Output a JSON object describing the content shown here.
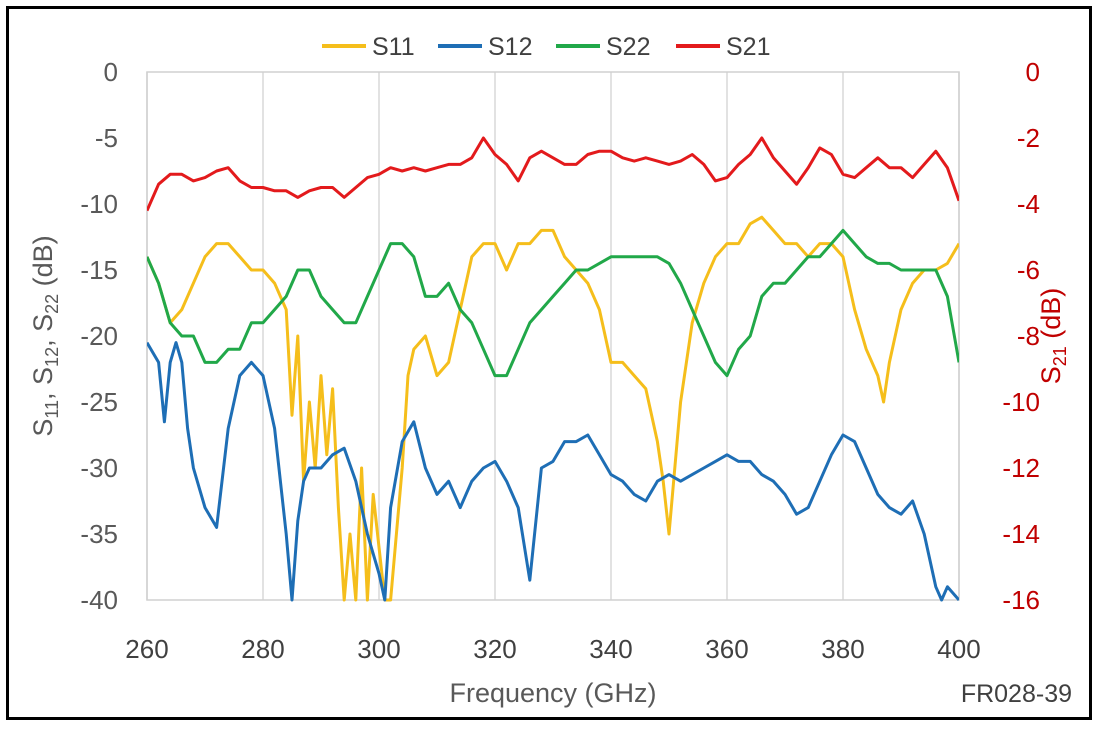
{
  "chart_data": {
    "type": "line",
    "xlabel": "Frequency (GHz)",
    "ylabel_left": {
      "main": "S",
      "parts": [
        [
          "11",
          ", S"
        ],
        [
          "12",
          ", S"
        ],
        [
          "22",
          " (dB)"
        ]
      ]
    },
    "ylabel_right": {
      "main": "S",
      "sub": "21",
      "suffix": " (dB)"
    },
    "xlim": [
      260,
      400
    ],
    "ylim_left": [
      -40,
      0
    ],
    "ylim_right": [
      -16,
      0
    ],
    "x_ticks": [
      "260",
      "280",
      "300",
      "320",
      "340",
      "360",
      "380",
      "400"
    ],
    "x_tick_values": [
      260,
      280,
      300,
      320,
      340,
      360,
      380,
      400
    ],
    "y_left_ticks": [
      "0",
      "-5",
      "-10",
      "-15",
      "-20",
      "-25",
      "-30",
      "-35",
      "-40"
    ],
    "y_left_tick_values": [
      0,
      -5,
      -10,
      -15,
      -20,
      -25,
      -30,
      -35,
      -40
    ],
    "y_right_ticks": [
      "0",
      "-2",
      "-4",
      "-6",
      "-8",
      "-10",
      "-12",
      "-14",
      "-16"
    ],
    "y_right_tick_values": [
      0,
      -2,
      -4,
      -6,
      -8,
      -10,
      -12,
      -14,
      -16
    ],
    "grid": "vertical",
    "legend_position": "top",
    "annotation": "FR028-39",
    "series": [
      {
        "name": "S11",
        "color": "#f5be1b",
        "axis": "left",
        "x": [
          260,
          262,
          264,
          266,
          268,
          270,
          272,
          274,
          276,
          278,
          280,
          282,
          284,
          285,
          286,
          287,
          288,
          289,
          290,
          291,
          292,
          293,
          294,
          295,
          296,
          297,
          298,
          299,
          300,
          301,
          302,
          303,
          304,
          305,
          306,
          308,
          310,
          312,
          314,
          316,
          318,
          320,
          322,
          324,
          326,
          328,
          330,
          332,
          334,
          336,
          338,
          340,
          342,
          344,
          346,
          348,
          349,
          350,
          351,
          352,
          354,
          356,
          358,
          360,
          362,
          364,
          366,
          368,
          370,
          372,
          374,
          376,
          378,
          380,
          382,
          384,
          386,
          387,
          388,
          390,
          392,
          394,
          396,
          398,
          400
        ],
        "y": [
          -14,
          -16,
          -19,
          -18,
          -16,
          -14,
          -13,
          -13,
          -14,
          -15,
          -15,
          -16,
          -18,
          -26,
          -20,
          -31,
          -25,
          -30,
          -23,
          -29,
          -24,
          -33,
          -40,
          -35,
          -40,
          -30,
          -40,
          -32,
          -36,
          -40,
          -40,
          -35,
          -30,
          -23,
          -21,
          -20,
          -23,
          -22,
          -18,
          -14,
          -13,
          -13,
          -15,
          -13,
          -13,
          -12,
          -12,
          -14,
          -15,
          -16,
          -18,
          -22,
          -22,
          -23,
          -24,
          -28,
          -31,
          -35,
          -30,
          -25,
          -19,
          -16,
          -14,
          -13,
          -13,
          -11.5,
          -11,
          -12,
          -13,
          -13,
          -14,
          -13,
          -13,
          -14,
          -18,
          -21,
          -23,
          -25,
          -22,
          -18,
          -16,
          -15,
          -15,
          -14.5,
          -13
        ]
      },
      {
        "name": "S12",
        "color": "#1e6eb5",
        "axis": "left",
        "x": [
          260,
          262,
          263,
          264,
          265,
          266,
          267,
          268,
          270,
          272,
          274,
          276,
          278,
          280,
          282,
          284,
          285,
          286,
          287,
          288,
          290,
          292,
          294,
          296,
          298,
          299,
          300,
          301,
          302,
          304,
          306,
          308,
          310,
          312,
          314,
          316,
          318,
          320,
          322,
          324,
          326,
          328,
          330,
          332,
          334,
          336,
          338,
          340,
          342,
          344,
          346,
          348,
          350,
          352,
          354,
          356,
          358,
          360,
          362,
          364,
          366,
          368,
          370,
          372,
          374,
          376,
          378,
          380,
          382,
          384,
          386,
          388,
          390,
          392,
          394,
          396,
          397,
          398,
          400
        ],
        "y": [
          -20.5,
          -22,
          -26.5,
          -22,
          -20.5,
          -22,
          -27,
          -30,
          -33,
          -34.5,
          -27,
          -23,
          -22,
          -23,
          -27,
          -35,
          -40,
          -34,
          -31,
          -30,
          -30,
          -29,
          -28.5,
          -31,
          -35,
          -36.5,
          -38,
          -40,
          -33,
          -28,
          -26.5,
          -30,
          -32,
          -31,
          -33,
          -31,
          -30,
          -29.5,
          -31,
          -33,
          -38.5,
          -30,
          -29.5,
          -28,
          -28,
          -27.5,
          -29,
          -30.5,
          -31,
          -32,
          -32.5,
          -31,
          -30.5,
          -31,
          -30.5,
          -30,
          -29.5,
          -29,
          -29.5,
          -29.5,
          -30.5,
          -31,
          -32,
          -33.5,
          -33,
          -31,
          -29,
          -27.5,
          -28,
          -30,
          -32,
          -33,
          -33.5,
          -32.5,
          -35,
          -39,
          -40,
          -39,
          -40
        ]
      },
      {
        "name": "S22",
        "color": "#21a849",
        "axis": "left",
        "x": [
          260,
          262,
          264,
          266,
          268,
          270,
          272,
          274,
          276,
          278,
          280,
          282,
          284,
          286,
          288,
          290,
          292,
          294,
          296,
          298,
          300,
          302,
          304,
          306,
          308,
          310,
          312,
          314,
          316,
          318,
          320,
          322,
          324,
          326,
          328,
          330,
          332,
          334,
          336,
          338,
          340,
          342,
          344,
          346,
          348,
          350,
          352,
          354,
          356,
          358,
          360,
          362,
          364,
          366,
          368,
          370,
          372,
          374,
          376,
          378,
          380,
          382,
          384,
          386,
          388,
          390,
          392,
          394,
          396,
          398,
          400
        ],
        "y": [
          -14,
          -16,
          -19,
          -20,
          -20,
          -22,
          -22,
          -21,
          -21,
          -19,
          -19,
          -18,
          -17,
          -15,
          -15,
          -17,
          -18,
          -19,
          -19,
          -17,
          -15,
          -13,
          -13,
          -14,
          -17,
          -17,
          -16,
          -18,
          -19,
          -21,
          -23,
          -23,
          -21,
          -19,
          -18,
          -17,
          -16,
          -15,
          -15,
          -14.5,
          -14,
          -14,
          -14,
          -14,
          -14,
          -14.5,
          -16,
          -18,
          -20,
          -22,
          -23,
          -21,
          -20,
          -17,
          -16,
          -16,
          -15,
          -14,
          -14,
          -13,
          -12,
          -13,
          -14,
          -14.5,
          -14.5,
          -15,
          -15,
          -15,
          -15,
          -17,
          -22
        ]
      },
      {
        "name": "S21",
        "color": "#e31a1c",
        "axis": "right",
        "x": [
          260,
          262,
          264,
          266,
          268,
          270,
          272,
          274,
          276,
          278,
          280,
          282,
          284,
          286,
          288,
          290,
          292,
          294,
          296,
          298,
          300,
          302,
          304,
          306,
          308,
          310,
          312,
          314,
          316,
          318,
          320,
          322,
          324,
          326,
          328,
          330,
          332,
          334,
          336,
          338,
          340,
          342,
          344,
          346,
          348,
          350,
          352,
          354,
          356,
          358,
          360,
          362,
          364,
          366,
          368,
          370,
          372,
          374,
          376,
          378,
          380,
          382,
          384,
          386,
          388,
          390,
          392,
          394,
          396,
          398,
          400
        ],
        "y": [
          -4.2,
          -3.4,
          -3.1,
          -3.1,
          -3.3,
          -3.2,
          -3,
          -2.9,
          -3.3,
          -3.5,
          -3.5,
          -3.6,
          -3.6,
          -3.8,
          -3.6,
          -3.5,
          -3.5,
          -3.8,
          -3.5,
          -3.2,
          -3.1,
          -2.9,
          -3,
          -2.9,
          -3,
          -2.9,
          -2.8,
          -2.8,
          -2.6,
          -2,
          -2.5,
          -2.8,
          -3.3,
          -2.6,
          -2.4,
          -2.6,
          -2.8,
          -2.8,
          -2.5,
          -2.4,
          -2.4,
          -2.6,
          -2.7,
          -2.6,
          -2.7,
          -2.8,
          -2.7,
          -2.5,
          -2.8,
          -3.3,
          -3.2,
          -2.8,
          -2.5,
          -2,
          -2.6,
          -3.0,
          -3.4,
          -2.9,
          -2.3,
          -2.5,
          -3.1,
          -3.2,
          -2.9,
          -2.6,
          -2.9,
          -2.9,
          -3.2,
          -2.8,
          -2.4,
          -2.9,
          -3.9
        ]
      }
    ]
  }
}
